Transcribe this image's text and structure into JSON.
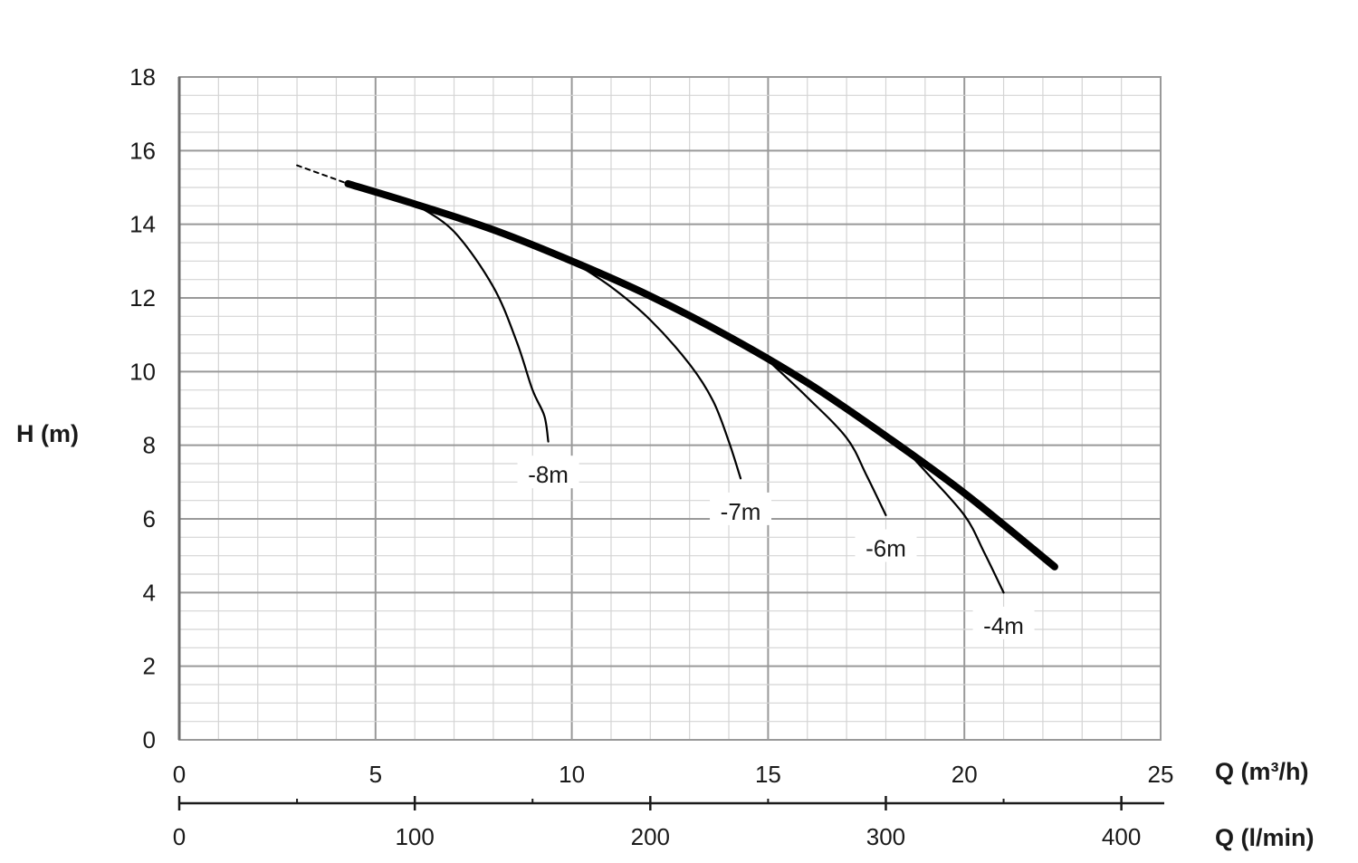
{
  "chart_data": {
    "type": "line",
    "ylabel": "H (m)",
    "xlabel": "Q (m³/h)",
    "xlabel_secondary": "Q (l/min)",
    "xlim": [
      0,
      25
    ],
    "ylim": [
      0,
      18
    ],
    "x_ticks": [
      "0",
      "5",
      "10",
      "15",
      "20",
      "25"
    ],
    "y_ticks": [
      "0",
      "2",
      "4",
      "6",
      "8",
      "10",
      "12",
      "14",
      "16",
      "18"
    ],
    "secondary_axis": {
      "lim": [
        0,
        416.67
      ],
      "ticks": [
        "0",
        "100",
        "200",
        "300",
        "400"
      ]
    },
    "grid": true,
    "series": [
      {
        "name": "",
        "style": "main",
        "x": [
          4.3,
          6,
          8,
          10,
          12,
          14,
          16,
          18,
          20,
          22.3
        ],
        "y": [
          15.1,
          14.55,
          13.85,
          13.0,
          12.05,
          10.95,
          9.7,
          8.25,
          6.7,
          4.7
        ]
      },
      {
        "name": "",
        "style": "dashed",
        "x": [
          3.0,
          4.3
        ],
        "y": [
          15.6,
          15.1
        ]
      },
      {
        "name": "-8m",
        "style": "branch",
        "x": [
          6,
          7,
          8,
          8.6,
          9.0,
          9.3,
          9.4
        ],
        "y": [
          14.55,
          13.8,
          12.3,
          10.8,
          9.5,
          8.8,
          8.1
        ]
      },
      {
        "name": "-7m",
        "style": "branch",
        "x": [
          10,
          11,
          12,
          13,
          13.6,
          14.0,
          14.3
        ],
        "y": [
          13.0,
          12.3,
          11.4,
          10.2,
          9.2,
          8.1,
          7.1
        ]
      },
      {
        "name": "-6m",
        "style": "branch",
        "x": [
          15,
          16,
          17,
          17.5,
          18.0
        ],
        "y": [
          10.3,
          9.3,
          8.2,
          7.2,
          6.1
        ]
      },
      {
        "name": "-4m",
        "style": "branch",
        "x": [
          18.3,
          19,
          20,
          20.5,
          21.0
        ],
        "y": [
          8.1,
          7.3,
          6.1,
          5.1,
          4.0
        ]
      }
    ],
    "annotations": [
      {
        "text": "-8m",
        "x": 9.4,
        "y": 7.2
      },
      {
        "text": "-7m",
        "x": 14.3,
        "y": 6.2
      },
      {
        "text": "-6m",
        "x": 18.0,
        "y": 5.2
      },
      {
        "text": "-4m",
        "x": 21.0,
        "y": 3.1
      }
    ]
  }
}
